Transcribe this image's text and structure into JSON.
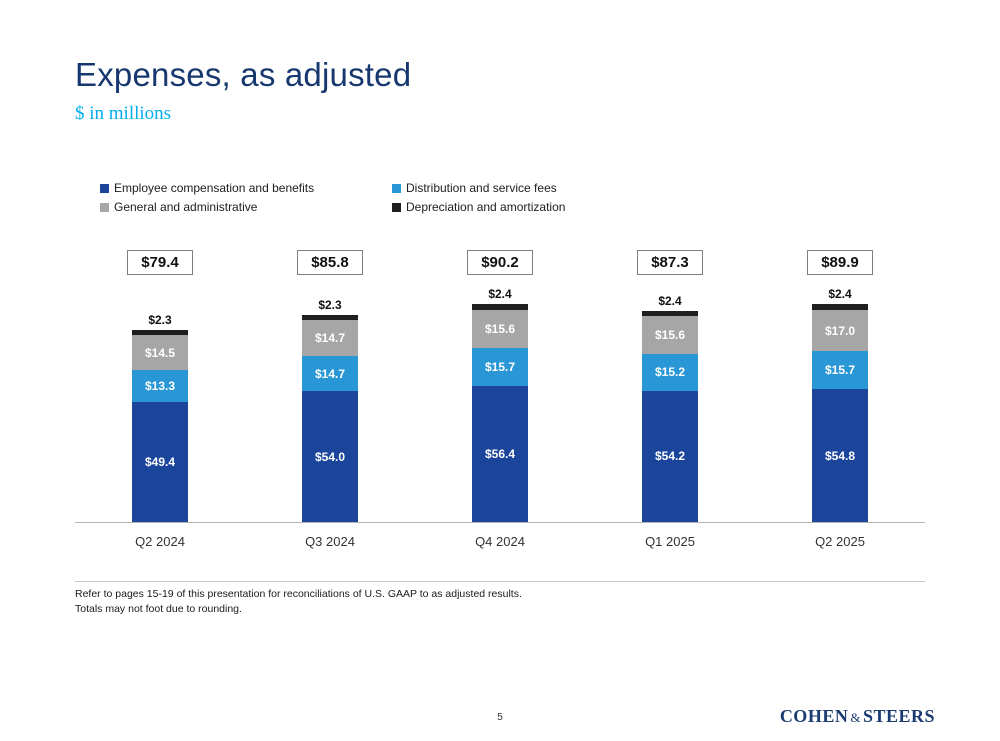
{
  "slide": {
    "title": "Expenses, as adjusted",
    "subtitle": "$ in millions",
    "footnotes": [
      "Refer to pages 15-19 of this presentation for reconciliations of U.S. GAAP to as adjusted results.",
      "Totals may not foot due to rounding."
    ],
    "page_number": "5",
    "logo": {
      "part1": "COHEN",
      "amp": "&",
      "part2": "STEERS"
    }
  },
  "colors": {
    "title_navy": "#17386f",
    "subtitle_cyan": "#00aeef",
    "employee_blue": "#1b449b",
    "distribution_blue": "#2997d6",
    "general_gray": "#a6a6a6",
    "depreciation_black": "#1f1f1f"
  },
  "chart_data": {
    "type": "bar",
    "stacked": true,
    "unit": "$ in millions",
    "title": "Expenses, as adjusted",
    "legend_position": "top",
    "categories": [
      "Q2 2024",
      "Q3 2024",
      "Q4 2024",
      "Q1 2025",
      "Q2 2025"
    ],
    "totals": [
      79.4,
      85.8,
      90.2,
      87.3,
      89.9
    ],
    "total_labels": [
      "$79.4",
      "$85.8",
      "$90.2",
      "$87.3",
      "$89.9"
    ],
    "series": [
      {
        "name": "Employee compensation and benefits",
        "color": "#1b449b",
        "values": [
          49.4,
          54.0,
          56.4,
          54.2,
          54.8
        ],
        "labels": [
          "$49.4",
          "$54.0",
          "$56.4",
          "$54.2",
          "$54.8"
        ],
        "label_position": "inside"
      },
      {
        "name": "Distribution and service fees",
        "color": "#2997d6",
        "values": [
          13.3,
          14.7,
          15.7,
          15.2,
          15.7
        ],
        "labels": [
          "$13.3",
          "$14.7",
          "$15.7",
          "$15.2",
          "$15.7"
        ],
        "label_position": "inside"
      },
      {
        "name": "General and administrative",
        "color": "#a6a6a6",
        "values": [
          14.5,
          14.7,
          15.6,
          15.6,
          17.0
        ],
        "labels": [
          "$14.5",
          "$14.7",
          "$15.6",
          "$15.6",
          "$17.0"
        ],
        "label_position": "inside"
      },
      {
        "name": "Depreciation and amortization",
        "color": "#1f1f1f",
        "values": [
          2.3,
          2.3,
          2.4,
          2.4,
          2.4
        ],
        "labels": [
          "$2.3",
          "$2.3",
          "$2.4",
          "$2.4",
          "$2.4"
        ],
        "label_position": "above"
      }
    ]
  }
}
